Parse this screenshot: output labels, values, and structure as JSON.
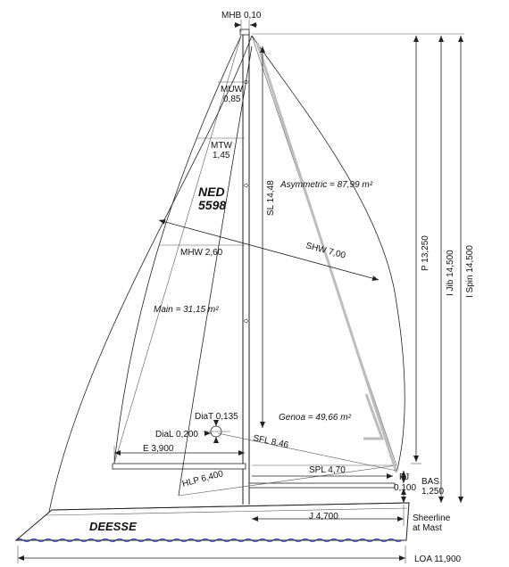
{
  "boat": {
    "sail_number_line1": "NED",
    "sail_number_line2": "5598",
    "name": "DEESSE"
  },
  "measurements": {
    "mhb": "MHB 0,10",
    "muw": "MUW",
    "muw_val": "0,85",
    "mtw": "MTW",
    "mtw_val": "1,45",
    "mhw": "MHW 2,60",
    "sl": "SL 14,48",
    "asym": "Asymmetric = 87,99 m²",
    "shw": "SHW 7,00",
    "main": "Main = 31,15 m²",
    "p": "P 13,250",
    "ijib": "I Jib 14,500",
    "ispin": "I Spin 14,500",
    "diat": "DiaT 0,135",
    "dial": "DiaL 0,200",
    "genoa": "Genoa = 49,66 m²",
    "sfl": "SFL 8,46",
    "e": "E 3,900",
    "spl": "SPL 4,70",
    "fj": "FJ",
    "fj_val": "0,100",
    "bas": "BAS",
    "bas_val": "1,250",
    "hlp": "HLP 6,400",
    "j": "J 4,700",
    "sheerline1": "Sheerline",
    "sheerline2": "at Mast",
    "loa": "LOA 11,900"
  },
  "colors": {
    "water": "#3a4fd6",
    "spinnaker_pole": "#bdbdbd",
    "line": "#222222"
  }
}
